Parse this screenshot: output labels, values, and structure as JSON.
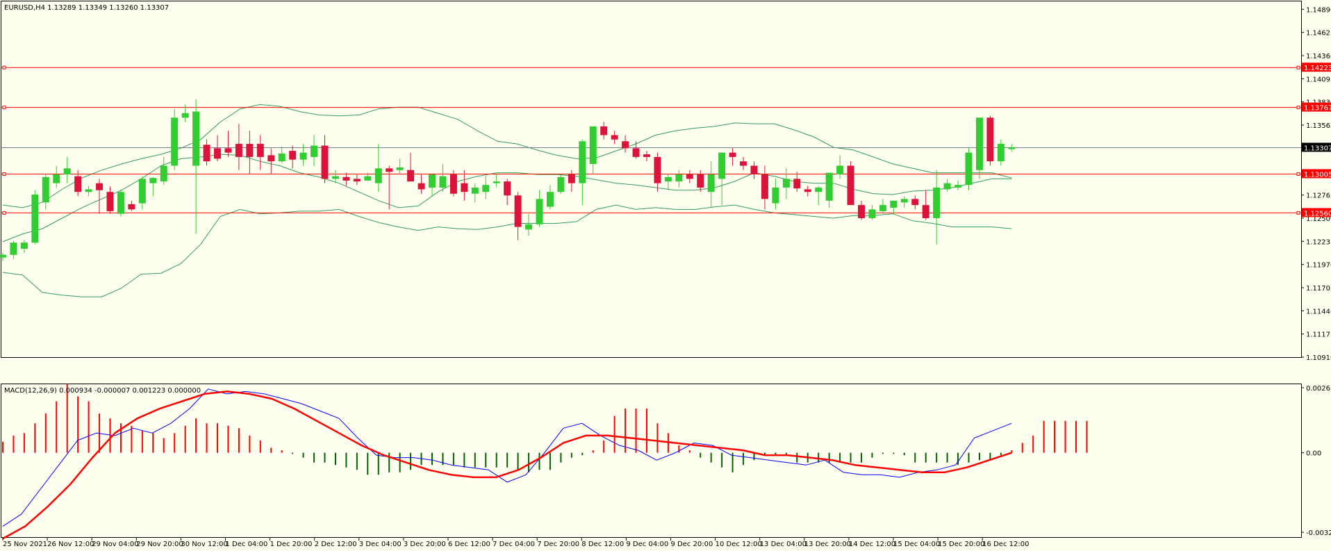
{
  "header": {
    "main_label": "EURUSD,H4  1.13289 1.13349 1.13260 1.13307",
    "macd_label": "MACD(12,26,9) 0.000934 -0.000007 0.001223 0.000000"
  },
  "colors": {
    "background": "#fffff0",
    "frame": "#000000",
    "bull": "#32cd32",
    "bear": "#dc143c",
    "bands": "#2e9e5a",
    "hline": "#ff0000",
    "macd_line": "#0000ff",
    "signal_line": "#ff0000",
    "hist_positive": "#ff0000",
    "hist_negative": "#006400",
    "label_dark": "#000000"
  },
  "chart_data": [
    {
      "type": "candlestick",
      "symbol": "EURUSD",
      "timeframe": "H4",
      "ohlc_readout": {
        "open": 1.13289,
        "high": 1.13349,
        "low": 1.1326,
        "close": 1.13307
      },
      "ylim": [
        1.1091,
        1.1498
      ],
      "y_ticks": [
        "1.14890",
        "1.14625",
        "1.14360",
        "1.14095",
        "1.13830",
        "1.13565",
        "1.13300",
        "1.13035",
        "1.12765",
        "1.12500",
        "1.12235",
        "1.11970",
        "1.11705",
        "1.11440",
        "1.11175",
        "1.10910"
      ],
      "x_tick_labels": [
        "25 Nov 2021",
        "26 Nov 12:00",
        "29 Nov 04:00",
        "29 Nov 20:00",
        "30 Nov 12:00",
        "1 Dec 04:00",
        "1 Dec 20:00",
        "2 Dec 12:00",
        "3 Dec 04:00",
        "3 Dec 20:00",
        "6 Dec 12:00",
        "7 Dec 04:00",
        "7 Dec 20:00",
        "8 Dec 12:00",
        "9 Dec 04:00",
        "9 Dec 20:00",
        "10 Dec 12:00",
        "13 Dec 04:00",
        "13 Dec 20:00",
        "14 Dec 12:00",
        "15 Dec 04:00",
        "15 Dec 20:00",
        "16 Dec 12:00"
      ],
      "horizontal_levels": [
        {
          "value": 1.14223,
          "label": "1.14223"
        },
        {
          "value": 1.13767,
          "label": "1.13767"
        },
        {
          "value": 1.13005,
          "label": "1.13005"
        },
        {
          "value": 1.1256,
          "label": "1.12560"
        }
      ],
      "current_price": {
        "value": 1.13307,
        "label": "1.13307"
      },
      "candles": [
        [
          1.1205,
          1.121,
          1.1201,
          1.1208
        ],
        [
          1.1208,
          1.1224,
          1.1203,
          1.1222
        ],
        [
          1.1215,
          1.1225,
          1.121,
          1.1222
        ],
        [
          1.1222,
          1.1282,
          1.122,
          1.1277
        ],
        [
          1.1268,
          1.13,
          1.126,
          1.1297
        ],
        [
          1.129,
          1.131,
          1.1285,
          1.13
        ],
        [
          1.13,
          1.132,
          1.129,
          1.1307
        ],
        [
          1.1298,
          1.1305,
          1.1275,
          1.128
        ],
        [
          1.128,
          1.1287,
          1.1275,
          1.1283
        ],
        [
          1.129,
          1.1295,
          1.1255,
          1.1282
        ],
        [
          1.128,
          1.1286,
          1.1255,
          1.1258
        ],
        [
          1.1255,
          1.1283,
          1.1252,
          1.128
        ],
        [
          1.1266,
          1.127,
          1.1258,
          1.126
        ],
        [
          1.1267,
          1.1298,
          1.126,
          1.1295
        ],
        [
          1.129,
          1.1297,
          1.1275,
          1.1296
        ],
        [
          1.1292,
          1.132,
          1.1288,
          1.131
        ],
        [
          1.131,
          1.1375,
          1.1305,
          1.1365
        ],
        [
          1.1365,
          1.138,
          1.136,
          1.137
        ],
        [
          1.131,
          1.1386,
          1.1232,
          1.1372
        ],
        [
          1.1334,
          1.134,
          1.131,
          1.1315
        ],
        [
          1.133,
          1.1345,
          1.1315,
          1.1318
        ],
        [
          1.133,
          1.135,
          1.132,
          1.1325
        ],
        [
          1.1335,
          1.1358,
          1.1305,
          1.132
        ],
        [
          1.1335,
          1.135,
          1.13,
          1.132
        ],
        [
          1.1335,
          1.1345,
          1.1305,
          1.132
        ],
        [
          1.1322,
          1.133,
          1.13,
          1.1315
        ],
        [
          1.1315,
          1.1332,
          1.1313,
          1.1324
        ],
        [
          1.1327,
          1.1333,
          1.1307,
          1.1317
        ],
        [
          1.1317,
          1.1335,
          1.131,
          1.1325
        ],
        [
          1.132,
          1.1345,
          1.131,
          1.1333
        ],
        [
          1.1333,
          1.1345,
          1.129,
          1.1295
        ],
        [
          1.1295,
          1.1305,
          1.129,
          1.1298
        ],
        [
          1.1297,
          1.1302,
          1.1287,
          1.1293
        ],
        [
          1.1295,
          1.13,
          1.1288,
          1.1292
        ],
        [
          1.1293,
          1.1302,
          1.1295,
          1.1298
        ],
        [
          1.129,
          1.1335,
          1.128,
          1.1307
        ],
        [
          1.1307,
          1.131,
          1.126,
          1.1303
        ],
        [
          1.1305,
          1.1318,
          1.13,
          1.1308
        ],
        [
          1.1305,
          1.1325,
          1.1295,
          1.1292
        ],
        [
          1.129,
          1.13,
          1.1278,
          1.1283
        ],
        [
          1.1285,
          1.13,
          1.1275,
          1.13
        ],
        [
          1.1285,
          1.1312,
          1.128,
          1.1298
        ],
        [
          1.13,
          1.1305,
          1.1275,
          1.1278
        ],
        [
          1.129,
          1.1305,
          1.127,
          1.128
        ],
        [
          1.1278,
          1.129,
          1.1268,
          1.1285
        ],
        [
          1.128,
          1.1298,
          1.1272,
          1.1288
        ],
        [
          1.129,
          1.13,
          1.1285,
          1.1292
        ],
        [
          1.1292,
          1.1295,
          1.1265,
          1.1276
        ],
        [
          1.1276,
          1.128,
          1.1225,
          1.124
        ],
        [
          1.1237,
          1.1255,
          1.123,
          1.1243
        ],
        [
          1.1243,
          1.1282,
          1.124,
          1.1272
        ],
        [
          1.1263,
          1.1288,
          1.126,
          1.128
        ],
        [
          1.128,
          1.13,
          1.1278,
          1.1297
        ],
        [
          1.13,
          1.1305,
          1.128,
          1.129
        ],
        [
          1.129,
          1.134,
          1.1265,
          1.1338
        ],
        [
          1.1312,
          1.1355,
          1.13,
          1.1355
        ],
        [
          1.1355,
          1.136,
          1.134,
          1.1345
        ],
        [
          1.1345,
          1.135,
          1.1335,
          1.134
        ],
        [
          1.1338,
          1.1345,
          1.1325,
          1.133
        ],
        [
          1.133,
          1.1338,
          1.1318,
          1.132
        ],
        [
          1.1323,
          1.1327,
          1.1315,
          1.132
        ],
        [
          1.132,
          1.1325,
          1.128,
          1.129
        ],
        [
          1.1292,
          1.13,
          1.1282,
          1.1297
        ],
        [
          1.1292,
          1.1305,
          1.1285,
          1.13
        ],
        [
          1.13,
          1.1305,
          1.129,
          1.1295
        ],
        [
          1.13,
          1.1305,
          1.128,
          1.1285
        ],
        [
          1.128,
          1.1315,
          1.1262,
          1.13
        ],
        [
          1.1295,
          1.1325,
          1.1265,
          1.1325
        ],
        [
          1.1325,
          1.133,
          1.131,
          1.132
        ],
        [
          1.1315,
          1.132,
          1.1305,
          1.131
        ],
        [
          1.131,
          1.1315,
          1.1295,
          1.13
        ],
        [
          1.13,
          1.131,
          1.126,
          1.1272
        ],
        [
          1.1267,
          1.1295,
          1.126,
          1.1285
        ],
        [
          1.1285,
          1.1307,
          1.1272,
          1.1295
        ],
        [
          1.1295,
          1.1303,
          1.128,
          1.1284
        ],
        [
          1.1283,
          1.1287,
          1.1275,
          1.128
        ],
        [
          1.128,
          1.1287,
          1.1265,
          1.1285
        ],
        [
          1.127,
          1.13,
          1.1262,
          1.1302
        ],
        [
          1.13,
          1.1322,
          1.1295,
          1.131
        ],
        [
          1.131,
          1.1315,
          1.1265,
          1.1265
        ],
        [
          1.1265,
          1.127,
          1.1248,
          1.125
        ],
        [
          1.125,
          1.1265,
          1.1248,
          1.126
        ],
        [
          1.1258,
          1.1272,
          1.1255,
          1.1265
        ],
        [
          1.1262,
          1.127,
          1.1255,
          1.127
        ],
        [
          1.1268,
          1.1275,
          1.1262,
          1.1272
        ],
        [
          1.1272,
          1.1276,
          1.126,
          1.1265
        ],
        [
          1.1265,
          1.1282,
          1.1248,
          1.125
        ],
        [
          1.125,
          1.1305,
          1.122,
          1.1285
        ],
        [
          1.1283,
          1.1295,
          1.128,
          1.129
        ],
        [
          1.1285,
          1.1293,
          1.1282,
          1.1288
        ],
        [
          1.1288,
          1.133,
          1.1282,
          1.1325
        ],
        [
          1.1305,
          1.1365,
          1.1295,
          1.1365
        ],
        [
          1.1365,
          1.1367,
          1.131,
          1.1315
        ],
        [
          1.1315,
          1.134,
          1.131,
          1.1335
        ],
        [
          1.1329,
          1.1335,
          1.1326,
          1.1331
        ]
      ],
      "bollinger": {
        "upper": [
          1.1265,
          1.1262,
          1.1268,
          1.1283,
          1.1296,
          1.1305,
          1.1312,
          1.1318,
          1.1323,
          1.133,
          1.134,
          1.136,
          1.1375,
          1.138,
          1.1378,
          1.1372,
          1.1368,
          1.1367,
          1.1368,
          1.1375,
          1.1377,
          1.1377,
          1.137,
          1.1363,
          1.135,
          1.1338,
          1.1335,
          1.1328,
          1.1322,
          1.1318,
          1.1319,
          1.1327,
          1.1335,
          1.1345,
          1.135,
          1.1353,
          1.1355,
          1.1359,
          1.1358,
          1.1358,
          1.1351,
          1.1343,
          1.1331,
          1.1328,
          1.132,
          1.1312,
          1.1307,
          1.1302,
          1.1302,
          1.1302,
          1.1302,
          1.1296
        ],
        "middle": [
          1.1223,
          1.1232,
          1.1238,
          1.125,
          1.1262,
          1.1272,
          1.1282,
          1.1295,
          1.131,
          1.1318,
          1.132,
          1.1323,
          1.1322,
          1.1315,
          1.131,
          1.1302,
          1.1297,
          1.129,
          1.128,
          1.127,
          1.1262,
          1.1264,
          1.128,
          1.1292,
          1.1298,
          1.1302,
          1.1302,
          1.13,
          1.13,
          1.1298,
          1.1294,
          1.129,
          1.1288,
          1.1285,
          1.1282,
          1.1282,
          1.1285,
          1.1292,
          1.1302,
          1.1298,
          1.1292,
          1.129,
          1.129,
          1.1283,
          1.1278,
          1.1277,
          1.1281,
          1.1282,
          1.1285,
          1.129,
          1.1295,
          1.1295
        ],
        "lower": [
          1.1188,
          1.1185,
          1.1165,
          1.1162,
          1.116,
          1.116,
          1.117,
          1.1186,
          1.1187,
          1.1198,
          1.122,
          1.1252,
          1.126,
          1.1255,
          1.1256,
          1.1258,
          1.1258,
          1.126,
          1.1252,
          1.1245,
          1.124,
          1.1236,
          1.124,
          1.1238,
          1.1237,
          1.124,
          1.1244,
          1.1244,
          1.1244,
          1.1246,
          1.126,
          1.1265,
          1.126,
          1.1262,
          1.126,
          1.126,
          1.1263,
          1.1265,
          1.126,
          1.1256,
          1.1254,
          1.1252,
          1.125,
          1.1253,
          1.1253,
          1.1255,
          1.1247,
          1.1244,
          1.124,
          1.124,
          1.124,
          1.1238
        ]
      }
    },
    {
      "type": "macd",
      "params": "MACD(12,26,9)",
      "ylim": [
        -0.003243,
        0.002652
      ],
      "y_ticks": [
        "0.002652",
        "0.00",
        "-0.003243"
      ],
      "histogram": [
        0.00045,
        0.0007,
        0.0008,
        0.0012,
        0.0016,
        0.0021,
        0.0028,
        0.0023,
        0.0021,
        0.0016,
        0.0014,
        0.0012,
        0.0011,
        0.0009,
        0.0008,
        0.0006,
        0.0008,
        0.0011,
        0.0014,
        0.0012,
        0.0012,
        0.0011,
        0.001,
        0.0007,
        0.0005,
        0.0002,
        0.0001,
        -5e-05,
        -0.0002,
        -0.0004,
        -0.0004,
        -0.0005,
        -0.0006,
        -0.0007,
        -0.0009,
        -0.0009,
        -0.0008,
        -0.0008,
        -0.0007,
        -0.0005,
        -0.0005,
        -0.0005,
        -0.0005,
        -0.0006,
        -0.0006,
        -0.0006,
        -0.0006,
        -0.0006,
        -0.0007,
        -0.0008,
        -0.0007,
        -0.0007,
        -0.0004,
        -0.0002,
        -0.0001,
        0.0001,
        0.0005,
        0.0015,
        0.0018,
        0.0018,
        0.0018,
        0.0012,
        0.0008,
        0.0003,
        0.0001,
        -0.0002,
        -0.0004,
        -0.0006,
        -0.0008,
        -0.0005,
        -0.0003,
        -0.0001,
        -0.0001,
        -0.0001,
        -0.0004,
        -0.0004,
        -0.0004,
        -0.0004,
        -0.0004,
        -0.0004,
        -0.0004,
        -0.0002,
        -5e-05,
        -5e-05,
        -0.0001,
        -0.0004,
        -0.0004,
        -0.0004,
        -0.0004,
        -0.0005,
        -0.0004,
        -0.0003,
        -0.0003,
        -0.0001,
        0.0001,
        0.0004,
        0.0007,
        0.0013,
        0.0013,
        0.0013,
        0.0013,
        0.0013
      ],
      "macd_line": [
        -0.003,
        -0.0025,
        -0.0015,
        -0.0005,
        0.0005,
        0.0008,
        0.0007,
        0.001,
        0.0008,
        0.0012,
        0.0018,
        0.0026,
        0.0024,
        0.0025,
        0.0024,
        0.0022,
        0.002,
        0.0017,
        0.0014,
        0.0006,
        -0.0001,
        -0.0002,
        -0.0002,
        -0.0003,
        -0.0005,
        -0.0006,
        -0.0007,
        -0.0012,
        -0.0009,
        0.0,
        0.001,
        0.0012,
        0.0007,
        0.0003,
        0.0001,
        -0.0003,
        0.0,
        0.0004,
        0.0003,
        -0.0001,
        -0.0002,
        -0.0003,
        -0.0004,
        -0.0005,
        -0.0003,
        -0.0008,
        -0.0009,
        -0.0009,
        -0.001,
        -0.0008,
        -0.0007,
        -0.0005,
        0.0006,
        0.0009,
        0.0012
      ],
      "signal_line": [
        -0.0035,
        -0.003,
        -0.0022,
        -0.0013,
        -0.0002,
        0.0008,
        0.0014,
        0.0018,
        0.0021,
        0.0024,
        0.0025,
        0.0024,
        0.0022,
        0.0018,
        0.0013,
        0.0008,
        0.0003,
        -0.0001,
        -0.0004,
        -0.0007,
        -0.0009,
        -0.001,
        -0.001,
        -0.0007,
        -0.0002,
        0.0004,
        0.0007,
        0.0007,
        0.0006,
        0.0005,
        0.0004,
        0.0003,
        0.0002,
        0.0001,
        -0.0001,
        -0.0001,
        -0.0002,
        -0.0003,
        -0.0005,
        -0.0006,
        -0.0007,
        -0.0008,
        -0.0008,
        -0.0006,
        -0.0003,
        0.0
      ]
    }
  ]
}
